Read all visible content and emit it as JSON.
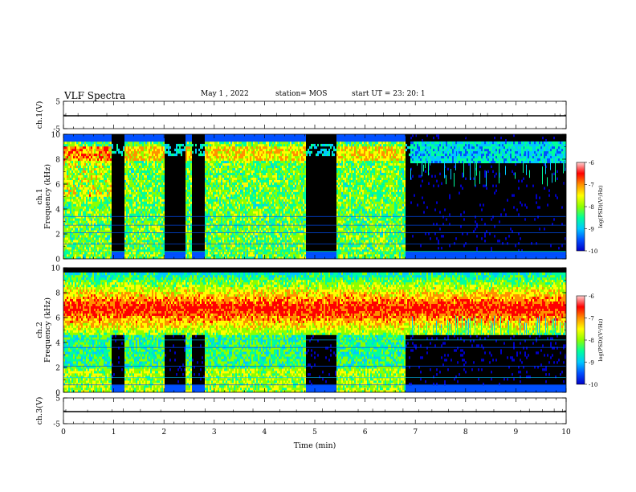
{
  "header": {
    "title": "VLF Spectra",
    "date": "May 1 , 2022",
    "station": "station= MOS",
    "start": "start UT = 23: 20: 1"
  },
  "colors": {
    "cmap": [
      "#000000",
      "#0000c8",
      "#0050ff",
      "#00c8ff",
      "#00ff9c",
      "#8cff00",
      "#ffff00",
      "#ff9000",
      "#ff0000",
      "#ffd0d0"
    ]
  },
  "chart_data": [
    {
      "type": "line",
      "panel": "ch1-waveform",
      "ylabel": "ch.1(V)",
      "ylim": [
        -5,
        5
      ],
      "yticks": [
        "5",
        "-5"
      ],
      "x": [
        0,
        10
      ],
      "values": [
        0,
        0
      ]
    },
    {
      "type": "heatmap",
      "panel": "ch1-spectrogram",
      "ylabel_top": "ch.1",
      "ylabel": "Frequency (kHz)",
      "ylim": [
        0,
        10
      ],
      "yticks": [
        "0",
        "2",
        "4",
        "6",
        "8",
        "10"
      ],
      "xlim": [
        0,
        10
      ],
      "activity_segments": [
        [
          0,
          0.95
        ],
        [
          1.2,
          2.0
        ],
        [
          2.4,
          2.55
        ],
        [
          2.8,
          4.8
        ],
        [
          5.4,
          6.8
        ]
      ],
      "colorbar": {
        "label": "log(PSD)(V²/Hz)",
        "ticks": [
          "-6",
          "-7",
          "-8",
          "-9",
          "-10"
        ],
        "range": [
          -10,
          -6
        ]
      }
    },
    {
      "type": "heatmap",
      "panel": "ch2-spectrogram",
      "ylabel_top": "ch.2",
      "ylabel": "Frequency (kHz)",
      "ylim": [
        0,
        10
      ],
      "yticks": [
        "0",
        "2",
        "4",
        "6",
        "8",
        "10"
      ],
      "xlim": [
        0,
        10
      ],
      "activity_segments": [
        [
          0,
          0.95
        ],
        [
          1.2,
          2.0
        ],
        [
          2.4,
          2.55
        ],
        [
          2.8,
          4.8
        ],
        [
          5.4,
          6.8
        ]
      ],
      "colorbar": {
        "label": "log(PSD)(V²/Hz)",
        "ticks": [
          "-6",
          "-7",
          "-8",
          "-9",
          "-10"
        ],
        "range": [
          -10,
          -6
        ]
      }
    },
    {
      "type": "line",
      "panel": "ch3-waveform",
      "ylabel": "ch.3(V)",
      "ylim": [
        -5,
        5
      ],
      "yticks": [
        "5",
        "-5"
      ],
      "x": [
        0,
        10
      ],
      "values": [
        0,
        0
      ]
    }
  ],
  "xaxis": {
    "label": "Time (min)",
    "ticks": [
      "0",
      "1",
      "2",
      "3",
      "4",
      "5",
      "6",
      "7",
      "8",
      "9",
      "10"
    ]
  }
}
